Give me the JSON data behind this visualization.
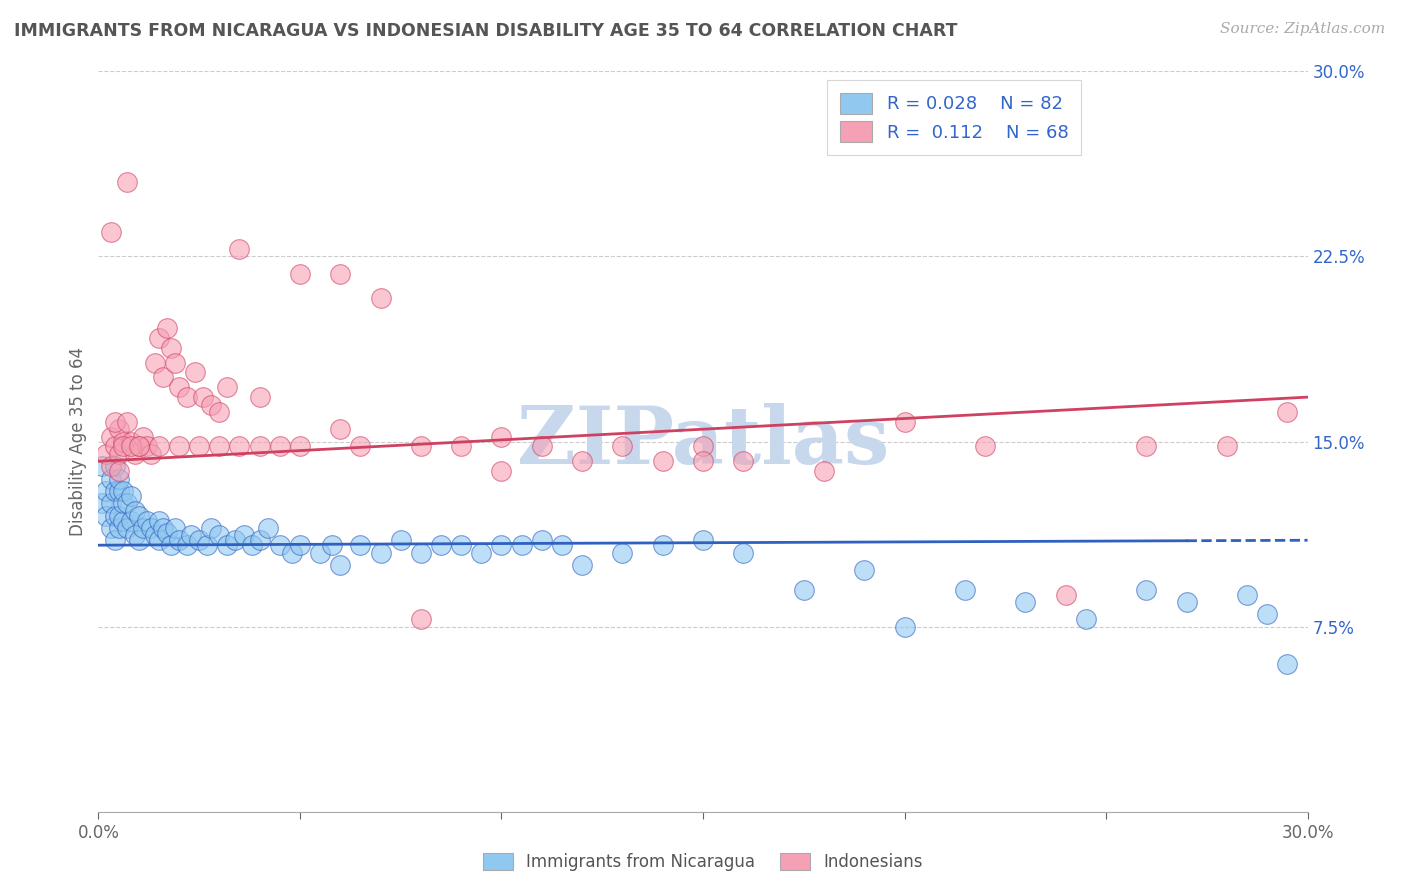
{
  "title": "IMMIGRANTS FROM NICARAGUA VS INDONESIAN DISABILITY AGE 35 TO 64 CORRELATION CHART",
  "source": "Source: ZipAtlas.com",
  "ylabel": "Disability Age 35 to 64",
  "xlim": [
    0.0,
    0.3
  ],
  "ylim": [
    0.0,
    0.3
  ],
  "color_nicaragua": "#90C8F0",
  "color_indonesia": "#F5A0B5",
  "trendline_nicaragua_color": "#3060C0",
  "trendline_indonesia_color": "#D04060",
  "background_color": "#ffffff",
  "grid_color": "#cccccc",
  "legend_text_color": "#3366CC",
  "watermark_color": "#C8D8EC",
  "trendline_nic_y0": 0.108,
  "trendline_nic_y1": 0.11,
  "trendline_ind_y0": 0.142,
  "trendline_ind_y1": 0.168,
  "trendline_nic_solid_xmax": 0.27,
  "scatter_nicaragua_x": [
    0.001,
    0.001,
    0.002,
    0.002,
    0.003,
    0.003,
    0.003,
    0.004,
    0.004,
    0.004,
    0.004,
    0.005,
    0.005,
    0.005,
    0.005,
    0.006,
    0.006,
    0.006,
    0.007,
    0.007,
    0.008,
    0.008,
    0.009,
    0.009,
    0.01,
    0.01,
    0.011,
    0.012,
    0.013,
    0.014,
    0.015,
    0.015,
    0.016,
    0.017,
    0.018,
    0.019,
    0.02,
    0.022,
    0.023,
    0.025,
    0.027,
    0.028,
    0.03,
    0.032,
    0.034,
    0.036,
    0.038,
    0.04,
    0.042,
    0.045,
    0.048,
    0.05,
    0.055,
    0.058,
    0.06,
    0.065,
    0.07,
    0.075,
    0.08,
    0.085,
    0.09,
    0.095,
    0.1,
    0.105,
    0.11,
    0.115,
    0.12,
    0.13,
    0.14,
    0.15,
    0.16,
    0.175,
    0.19,
    0.2,
    0.215,
    0.23,
    0.245,
    0.26,
    0.27,
    0.285,
    0.29,
    0.295
  ],
  "scatter_nicaragua_y": [
    0.125,
    0.14,
    0.13,
    0.12,
    0.115,
    0.125,
    0.135,
    0.11,
    0.12,
    0.13,
    0.14,
    0.115,
    0.12,
    0.13,
    0.135,
    0.118,
    0.125,
    0.13,
    0.115,
    0.125,
    0.118,
    0.128,
    0.112,
    0.122,
    0.11,
    0.12,
    0.115,
    0.118,
    0.115,
    0.112,
    0.11,
    0.118,
    0.115,
    0.113,
    0.108,
    0.115,
    0.11,
    0.108,
    0.112,
    0.11,
    0.108,
    0.115,
    0.112,
    0.108,
    0.11,
    0.112,
    0.108,
    0.11,
    0.115,
    0.108,
    0.105,
    0.108,
    0.105,
    0.108,
    0.1,
    0.108,
    0.105,
    0.11,
    0.105,
    0.108,
    0.108,
    0.105,
    0.108,
    0.108,
    0.11,
    0.108,
    0.1,
    0.105,
    0.108,
    0.11,
    0.105,
    0.09,
    0.098,
    0.075,
    0.09,
    0.085,
    0.078,
    0.09,
    0.085,
    0.088,
    0.08,
    0.06
  ],
  "scatter_indonesia_x": [
    0.002,
    0.003,
    0.003,
    0.004,
    0.005,
    0.005,
    0.006,
    0.007,
    0.008,
    0.009,
    0.01,
    0.011,
    0.012,
    0.013,
    0.014,
    0.015,
    0.016,
    0.017,
    0.018,
    0.019,
    0.02,
    0.022,
    0.024,
    0.026,
    0.028,
    0.03,
    0.032,
    0.035,
    0.04,
    0.045,
    0.05,
    0.06,
    0.065,
    0.07,
    0.08,
    0.09,
    0.1,
    0.11,
    0.12,
    0.13,
    0.14,
    0.15,
    0.16,
    0.18,
    0.2,
    0.22,
    0.24,
    0.26,
    0.28,
    0.295,
    0.003,
    0.004,
    0.005,
    0.006,
    0.007,
    0.008,
    0.01,
    0.015,
    0.02,
    0.025,
    0.03,
    0.035,
    0.04,
    0.05,
    0.06,
    0.08,
    0.1,
    0.15
  ],
  "scatter_indonesia_y": [
    0.145,
    0.14,
    0.152,
    0.148,
    0.145,
    0.155,
    0.15,
    0.255,
    0.15,
    0.145,
    0.148,
    0.152,
    0.148,
    0.145,
    0.182,
    0.192,
    0.176,
    0.196,
    0.188,
    0.182,
    0.172,
    0.168,
    0.178,
    0.168,
    0.165,
    0.162,
    0.172,
    0.228,
    0.168,
    0.148,
    0.218,
    0.218,
    0.148,
    0.208,
    0.148,
    0.148,
    0.152,
    0.148,
    0.142,
    0.148,
    0.142,
    0.148,
    0.142,
    0.138,
    0.158,
    0.148,
    0.088,
    0.148,
    0.148,
    0.162,
    0.235,
    0.158,
    0.138,
    0.148,
    0.158,
    0.148,
    0.148,
    0.148,
    0.148,
    0.148,
    0.148,
    0.148,
    0.148,
    0.148,
    0.155,
    0.078,
    0.138,
    0.142
  ]
}
